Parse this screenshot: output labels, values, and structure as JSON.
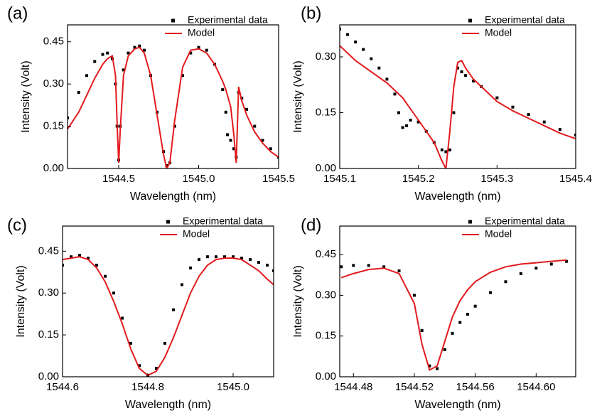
{
  "chart_data": [
    {
      "type": "line",
      "panel_label": "(a)",
      "x_label": "Wavelength (nm)",
      "y_label": "Intensity (Volt)",
      "legend": "upper right",
      "xlim": [
        1544.18,
        1545.5
      ],
      "xticks": [
        1544.5,
        {
          "value": 1545.0,
          "label": "1545.0"
        },
        1545.5
      ],
      "ylim": [
        0,
        0.51
      ],
      "yticks": [
        {
          "value": 0,
          "label": "0.00"
        },
        {
          "value": 0.15,
          "label": "0.15"
        },
        {
          "value": 0.3,
          "label": "0.30"
        },
        {
          "value": 0.45,
          "label": "0.45"
        }
      ],
      "series": [
        {
          "name": "Experimental data",
          "color": "#000000",
          "style": "markers",
          "x": [
            1544.18,
            1544.25,
            1544.3,
            1544.35,
            1544.4,
            1544.43,
            1544.46,
            1544.48,
            1544.49,
            1544.5,
            1544.51,
            1544.53,
            1544.56,
            1544.6,
            1544.63,
            1544.66,
            1544.7,
            1544.74,
            1544.78,
            1544.8,
            1544.82,
            1544.85,
            1544.9,
            1544.95,
            1545.0,
            1545.05,
            1545.1,
            1545.15,
            1545.17,
            1545.18,
            1545.2,
            1545.22,
            1545.235,
            1545.25,
            1545.27,
            1545.3,
            1545.35,
            1545.4,
            1545.45,
            1545.5
          ],
          "values": [
            0.18,
            0.27,
            0.33,
            0.38,
            0.405,
            0.41,
            0.39,
            0.3,
            0.15,
            0.03,
            0.15,
            0.35,
            0.41,
            0.43,
            0.435,
            0.42,
            0.33,
            0.2,
            0.06,
            0.01,
            0.02,
            0.15,
            0.33,
            0.41,
            0.43,
            0.42,
            0.37,
            0.28,
            0.2,
            0.12,
            0.1,
            0.07,
            0.04,
            0.27,
            0.25,
            0.21,
            0.15,
            0.1,
            0.07,
            0.04
          ]
        },
        {
          "name": "Model",
          "color": "#e3191c",
          "style": "line",
          "x": [
            1544.18,
            1544.25,
            1544.3,
            1544.35,
            1544.4,
            1544.43,
            1544.46,
            1544.48,
            1544.49,
            1544.5,
            1544.51,
            1544.53,
            1544.56,
            1544.6,
            1544.63,
            1544.66,
            1544.7,
            1544.74,
            1544.78,
            1544.8,
            1544.82,
            1544.85,
            1544.9,
            1544.95,
            1545.0,
            1545.05,
            1545.1,
            1545.15,
            1545.17,
            1545.18,
            1545.2,
            1545.22,
            1545.235,
            1545.25,
            1545.27,
            1545.3,
            1545.35,
            1545.4,
            1545.45,
            1545.5
          ],
          "values": [
            0.14,
            0.2,
            0.26,
            0.32,
            0.37,
            0.39,
            0.4,
            0.33,
            0.16,
            0.02,
            0.14,
            0.33,
            0.4,
            0.425,
            0.43,
            0.41,
            0.33,
            0.19,
            0.05,
            0.0,
            0.02,
            0.17,
            0.36,
            0.42,
            0.425,
            0.41,
            0.37,
            0.31,
            0.28,
            0.26,
            0.22,
            0.12,
            0.02,
            0.29,
            0.24,
            0.19,
            0.13,
            0.09,
            0.06,
            0.04
          ]
        }
      ]
    },
    {
      "type": "line",
      "panel_label": "(b)",
      "x_label": "Wavelength (nm)",
      "y_label": "Intensity (Volt)",
      "legend": "upper right",
      "xlim": [
        1545.1,
        1545.4
      ],
      "xticks": [
        1545.1,
        1545.2,
        1545.3,
        1545.4
      ],
      "ylim": [
        0,
        0.386
      ],
      "yticks": [
        {
          "value": 0,
          "label": "0.00"
        },
        {
          "value": 0.15,
          "label": "0.15"
        },
        {
          "value": 0.3,
          "label": "0.30"
        }
      ],
      "series": [
        {
          "name": "Experimental data",
          "color": "#000000",
          "style": "markers",
          "x": [
            1545.1,
            1545.11,
            1545.12,
            1545.13,
            1545.14,
            1545.15,
            1545.16,
            1545.17,
            1545.175,
            1545.18,
            1545.185,
            1545.19,
            1545.2,
            1545.21,
            1545.22,
            1545.23,
            1545.235,
            1545.24,
            1545.245,
            1545.25,
            1545.255,
            1545.26,
            1545.27,
            1545.28,
            1545.3,
            1545.32,
            1545.34,
            1545.36,
            1545.38,
            1545.4
          ],
          "values": [
            0.375,
            0.36,
            0.34,
            0.32,
            0.295,
            0.27,
            0.24,
            0.2,
            0.15,
            0.11,
            0.115,
            0.13,
            0.125,
            0.1,
            0.07,
            0.05,
            0.045,
            0.05,
            0.15,
            0.27,
            0.26,
            0.25,
            0.235,
            0.22,
            0.19,
            0.165,
            0.145,
            0.125,
            0.105,
            0.09
          ]
        },
        {
          "name": "Model",
          "color": "#e3191c",
          "style": "line",
          "x": [
            1545.1,
            1545.11,
            1545.12,
            1545.13,
            1545.14,
            1545.15,
            1545.16,
            1545.17,
            1545.175,
            1545.18,
            1545.185,
            1545.19,
            1545.2,
            1545.21,
            1545.22,
            1545.23,
            1545.235,
            1545.24,
            1545.245,
            1545.25,
            1545.255,
            1545.26,
            1545.27,
            1545.28,
            1545.3,
            1545.32,
            1545.34,
            1545.36,
            1545.38,
            1545.4
          ],
          "values": [
            0.33,
            0.31,
            0.29,
            0.275,
            0.26,
            0.245,
            0.23,
            0.21,
            0.2,
            0.19,
            0.175,
            0.16,
            0.13,
            0.1,
            0.07,
            0.02,
            0.0,
            0.1,
            0.22,
            0.285,
            0.29,
            0.27,
            0.24,
            0.22,
            0.18,
            0.155,
            0.135,
            0.115,
            0.095,
            0.08
          ]
        }
      ]
    },
    {
      "type": "line",
      "panel_label": "(c)",
      "x_label": "Wavelength (nm)",
      "y_label": "Intensity (Volt)",
      "legend": "upper right",
      "xlim": [
        1544.6,
        1545.095
      ],
      "xticks": [
        1544.6,
        1544.8,
        {
          "value": 1545.0,
          "label": "1545.0"
        }
      ],
      "ylim": [
        0,
        0.54
      ],
      "yticks": [
        {
          "value": 0,
          "label": "0.00"
        },
        {
          "value": 0.15,
          "label": "0.15"
        },
        {
          "value": 0.3,
          "label": "0.30"
        },
        {
          "value": 0.45,
          "label": "0.45"
        }
      ],
      "series": [
        {
          "name": "Experimental data",
          "color": "#000000",
          "style": "markers",
          "x": [
            1544.6,
            1544.62,
            1544.64,
            1544.66,
            1544.68,
            1544.7,
            1544.72,
            1544.74,
            1544.76,
            1544.78,
            1544.8,
            1544.82,
            1544.84,
            1544.86,
            1544.88,
            1544.9,
            1544.92,
            1544.94,
            1544.96,
            1544.98,
            1545.0,
            1545.02,
            1545.04,
            1545.06,
            1545.08,
            1545.095
          ],
          "values": [
            0.4,
            0.43,
            0.435,
            0.425,
            0.4,
            0.36,
            0.3,
            0.21,
            0.12,
            0.04,
            0.005,
            0.03,
            0.12,
            0.24,
            0.33,
            0.39,
            0.42,
            0.43,
            0.43,
            0.43,
            0.43,
            0.425,
            0.42,
            0.41,
            0.4,
            0.38
          ]
        },
        {
          "name": "Model",
          "color": "#e3191c",
          "style": "line",
          "x": [
            1544.6,
            1544.62,
            1544.64,
            1544.66,
            1544.68,
            1544.7,
            1544.72,
            1544.74,
            1544.76,
            1544.78,
            1544.8,
            1544.82,
            1544.84,
            1544.86,
            1544.88,
            1544.9,
            1544.92,
            1544.94,
            1544.96,
            1544.98,
            1545.0,
            1545.02,
            1545.04,
            1545.06,
            1545.08,
            1545.095
          ],
          "values": [
            0.42,
            0.425,
            0.43,
            0.42,
            0.39,
            0.34,
            0.27,
            0.19,
            0.1,
            0.03,
            0.005,
            0.02,
            0.07,
            0.14,
            0.22,
            0.3,
            0.36,
            0.4,
            0.42,
            0.425,
            0.425,
            0.42,
            0.4,
            0.38,
            0.35,
            0.33
          ]
        }
      ]
    },
    {
      "type": "line",
      "panel_label": "(d)",
      "x_label": "Wavelength (nm)",
      "y_label": "Intensity (Volt)",
      "legend": "upper right",
      "xlim": [
        1544.471,
        1544.626
      ],
      "xticks": [
        1544.48,
        1544.52,
        1544.56,
        {
          "value": 1544.6,
          "label": "1544.60"
        }
      ],
      "ylim": [
        0,
        0.555
      ],
      "yticks": [
        {
          "value": 0,
          "label": "0.00"
        },
        {
          "value": 0.15,
          "label": "0.15"
        },
        {
          "value": 0.3,
          "label": "0.30"
        },
        {
          "value": 0.45,
          "label": "0.45"
        }
      ],
      "series": [
        {
          "name": "Experimental data",
          "color": "#000000",
          "style": "markers",
          "x": [
            1544.472,
            1544.48,
            1544.49,
            1544.5,
            1544.51,
            1544.52,
            1544.525,
            1544.53,
            1544.535,
            1544.54,
            1544.545,
            1544.55,
            1544.555,
            1544.56,
            1544.57,
            1544.58,
            1544.59,
            1544.6,
            1544.61,
            1544.62
          ],
          "values": [
            0.405,
            0.41,
            0.41,
            0.405,
            0.39,
            0.3,
            0.17,
            0.04,
            0.03,
            0.1,
            0.16,
            0.2,
            0.23,
            0.26,
            0.31,
            0.35,
            0.38,
            0.4,
            0.415,
            0.425
          ]
        },
        {
          "name": "Model",
          "color": "#e3191c",
          "style": "line",
          "x": [
            1544.472,
            1544.48,
            1544.49,
            1544.5,
            1544.51,
            1544.52,
            1544.525,
            1544.53,
            1544.535,
            1544.54,
            1544.545,
            1544.55,
            1544.555,
            1544.56,
            1544.57,
            1544.58,
            1544.59,
            1544.6,
            1544.61,
            1544.62
          ],
          "values": [
            0.365,
            0.38,
            0.395,
            0.4,
            0.38,
            0.27,
            0.12,
            0.025,
            0.04,
            0.13,
            0.22,
            0.28,
            0.32,
            0.35,
            0.385,
            0.405,
            0.415,
            0.42,
            0.425,
            0.43
          ]
        }
      ]
    }
  ]
}
